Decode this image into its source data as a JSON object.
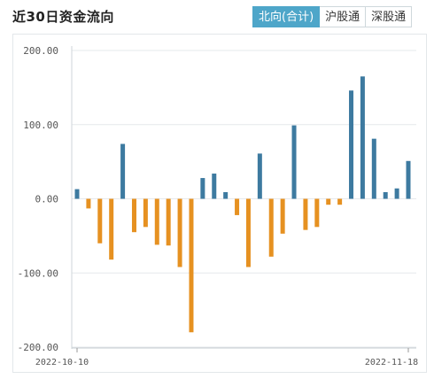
{
  "header": {
    "title": "近30日资金流向",
    "tabs": [
      {
        "label": "北向(合计)",
        "active": true
      },
      {
        "label": "沪股通",
        "active": false
      },
      {
        "label": "深股通",
        "active": false
      }
    ]
  },
  "colors": {
    "positive": "#3d7aa0",
    "negative": "#e69121",
    "accent": "#4ea6c9",
    "grid": "#e6e9eb"
  },
  "chart_data": {
    "type": "bar",
    "title": "",
    "xlabel": "",
    "ylabel": "",
    "ylim": [
      -200,
      200
    ],
    "yticks": [
      "200.00",
      "100.00",
      "0.00",
      "-100.00",
      "-200.00"
    ],
    "x_start_label": "2022-10-10",
    "x_end_label": "2022-11-18",
    "grid": true,
    "values": [
      13,
      -13,
      -60,
      -82,
      74,
      -45,
      -38,
      -62,
      -63,
      -92,
      -180,
      28,
      34,
      9,
      -22,
      -92,
      61,
      -78,
      -47,
      99,
      -42,
      -38,
      -8,
      -8,
      146,
      165,
      81,
      9,
      14,
      51
    ]
  }
}
